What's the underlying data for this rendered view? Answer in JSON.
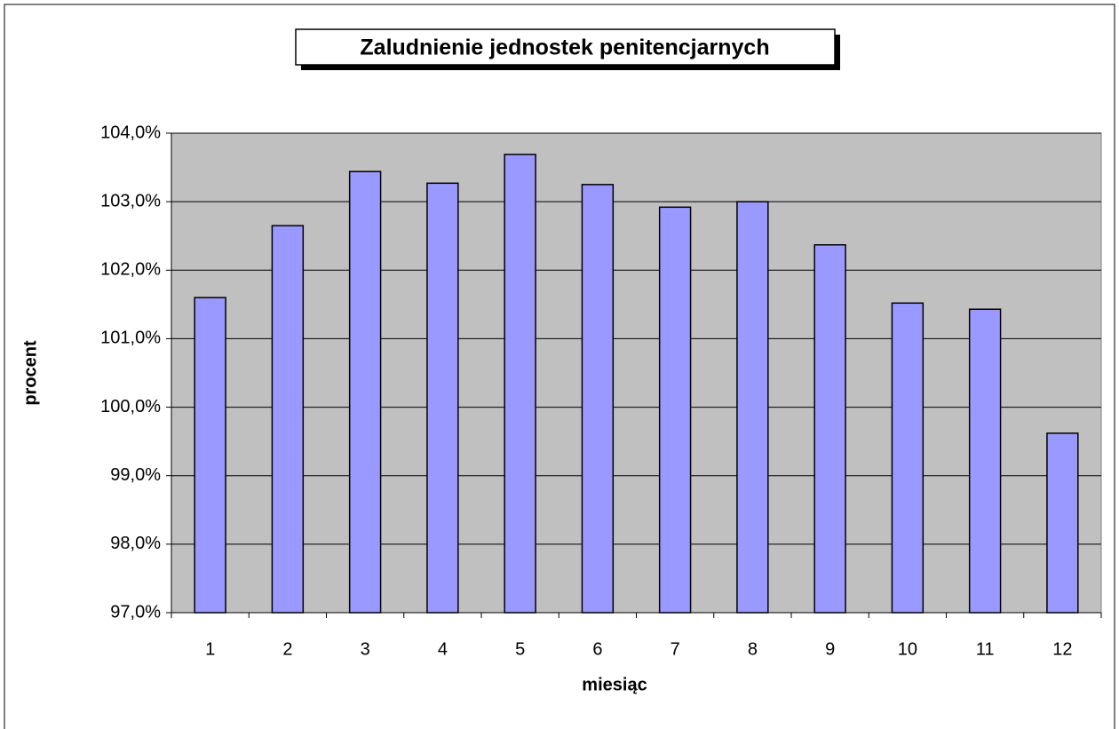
{
  "chart_data": {
    "type": "bar",
    "title": "Zaludnienie jednostek penitencjarnych",
    "x_label": "miesiąc",
    "y_label": "procent",
    "categories": [
      "1",
      "2",
      "3",
      "4",
      "5",
      "6",
      "7",
      "8",
      "9",
      "10",
      "11",
      "12"
    ],
    "values": [
      101.6,
      102.65,
      103.44,
      103.27,
      103.69,
      103.25,
      102.92,
      103.0,
      102.37,
      101.52,
      101.43,
      99.62
    ],
    "color": "#9999ff",
    "ylim": [
      97,
      104
    ],
    "yticks": [
      {
        "value": 97,
        "label": "97,0%"
      },
      {
        "value": 98,
        "label": "98,0%"
      },
      {
        "value": 99,
        "label": "99,0%"
      },
      {
        "value": 100,
        "label": "100,0%"
      },
      {
        "value": 101,
        "label": "101,0%"
      },
      {
        "value": 102,
        "label": "102,0%"
      },
      {
        "value": 103,
        "label": "103,0%"
      },
      {
        "value": 104,
        "label": "104,0%"
      }
    ],
    "grid": true
  }
}
